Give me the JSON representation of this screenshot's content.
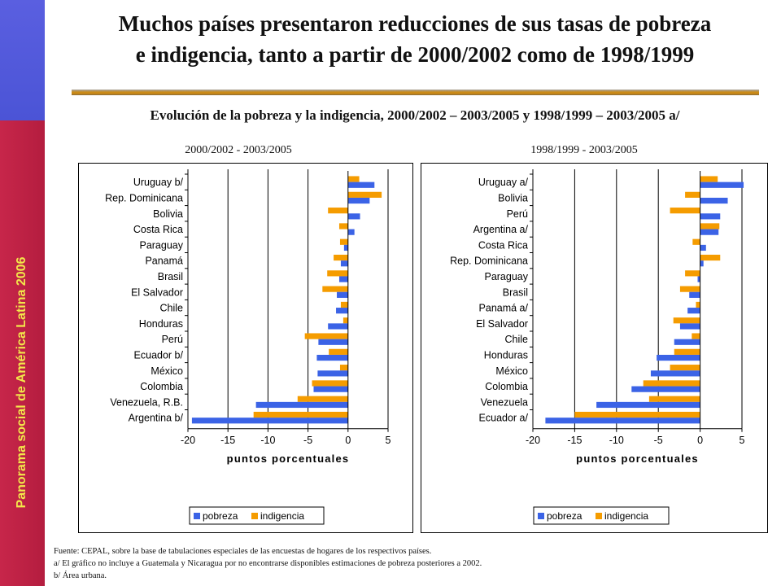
{
  "side_banner": "Panorama social de América Latina  2006",
  "title": {
    "line1": "Muchos países presentaron reducciones de sus tasas de pobreza",
    "line2": "e indigencia, tanto a partir de 2000/2002 como de 1998/1999"
  },
  "subtitle": "Evolución de la pobreza y la indigencia, 2000/2002 – 2003/2005 y 1998/1999 – 2003/2005 a/",
  "footnotes": {
    "source": "Fuente: CEPAL, sobre la base de tabulaciones especiales de las encuestas de hogares de los respectivos países.",
    "note_a": "a/ El gráfico no incluye a Guatemala y Nicaragua por no encontrarse disponibles estimaciones de pobreza posteriores a 2002.",
    "note_b": "b/ Área urbana."
  },
  "colors": {
    "pobreza": "#3b63e6",
    "indigencia": "#f59c00"
  },
  "chart_data": [
    {
      "type": "bar",
      "orientation": "horizontal",
      "panel_label": "2000/2002 - 2003/2005",
      "xlabel": "puntos porcentuales",
      "xlim": [
        -20,
        5
      ],
      "xticks": [
        -20,
        -15,
        -10,
        -5,
        0,
        5
      ],
      "legend": [
        "pobreza",
        "indigencia"
      ],
      "legend_position": "bottom",
      "categories": [
        "Uruguay b/",
        "Rep. Dominicana",
        "Bolivia",
        "Costa Rica",
        "Paraguay",
        "Panamá",
        "Brasil",
        "El Salvador",
        "Chile",
        "Honduras",
        "Perú",
        "Ecuador b/",
        "México",
        "Colombia",
        "Venezuela, R.B.",
        "Argentina b/"
      ],
      "series": [
        {
          "name": "pobreza",
          "values": [
            3.3,
            2.7,
            1.5,
            0.8,
            -0.5,
            -0.9,
            -1.1,
            -1.4,
            -1.5,
            -2.5,
            -3.7,
            -3.9,
            -3.8,
            -4.3,
            -11.5,
            -19.5
          ]
        },
        {
          "name": "indigencia",
          "values": [
            1.4,
            4.2,
            -2.5,
            -1.1,
            -1.0,
            -1.8,
            -2.6,
            -3.2,
            -0.9,
            -0.6,
            -5.4,
            -2.4,
            -1.0,
            -4.5,
            -6.3,
            -11.8
          ]
        }
      ]
    },
    {
      "type": "bar",
      "orientation": "horizontal",
      "panel_label": "1998/1999 - 2003/2005",
      "xlabel": "puntos porcentuales",
      "xlim": [
        -20,
        5
      ],
      "xticks": [
        -20,
        -15,
        -10,
        -5,
        0,
        5
      ],
      "legend": [
        "pobreza",
        "indigencia"
      ],
      "legend_position": "bottom",
      "categories": [
        "Uruguay a/",
        "Bolivia",
        "Perú",
        "Argentina a/",
        "Costa Rica",
        "Rep. Dominicana",
        "Paraguay",
        "Brasil",
        "Panamá a/",
        "El Salvador",
        "Chile",
        "Honduras",
        "México",
        "Colombia",
        "Venezuela",
        "Ecuador a/"
      ],
      "series": [
        {
          "name": "pobreza",
          "values": [
            5.2,
            3.3,
            2.4,
            2.2,
            0.7,
            0.4,
            -0.3,
            -1.3,
            -1.5,
            -2.4,
            -3.1,
            -5.2,
            -5.9,
            -8.2,
            -12.4,
            -18.5
          ]
        },
        {
          "name": "indigencia",
          "values": [
            2.1,
            -1.8,
            -3.6,
            2.3,
            -0.9,
            2.4,
            -1.8,
            -2.4,
            -0.5,
            -3.2,
            -1.0,
            -3.1,
            -3.6,
            -6.8,
            -6.1,
            -15.0
          ]
        }
      ]
    }
  ]
}
